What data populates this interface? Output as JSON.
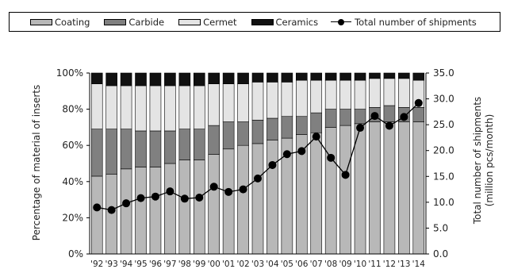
{
  "chart_data": {
    "type": "bar",
    "stacked": true,
    "percent_stacked": true,
    "categories": [
      "'92",
      "'93",
      "'94",
      "'95",
      "'96",
      "'97",
      "'98",
      "'99",
      "'00",
      "'01",
      "'02",
      "'03",
      "'04",
      "'05",
      "'06",
      "'07",
      "'08",
      "'09",
      "'10",
      "'11",
      "'12",
      "'13",
      "'14"
    ],
    "series": [
      {
        "name": "Coating",
        "color": "#b8b8b8",
        "values": [
          43,
          44,
          47,
          48,
          48,
          50,
          52,
          52,
          55,
          58,
          60,
          61,
          63,
          64,
          66,
          67,
          70,
          71,
          72,
          73,
          73,
          73,
          73
        ]
      },
      {
        "name": "Carbide",
        "color": "#808080",
        "values": [
          26,
          25,
          22,
          20,
          20,
          18,
          17,
          17,
          16,
          15,
          13,
          13,
          12,
          12,
          10,
          11,
          10,
          9,
          8,
          8,
          9,
          8,
          8
        ]
      },
      {
        "name": "Cermet",
        "color": "#e4e4e4",
        "values": [
          25,
          24,
          24,
          25,
          25,
          25,
          24,
          24,
          23,
          21,
          21,
          21,
          20,
          19,
          20,
          18,
          16,
          16,
          16,
          16,
          15,
          16,
          15
        ]
      },
      {
        "name": "Ceramics",
        "color": "#111111",
        "values": [
          6,
          7,
          7,
          7,
          7,
          7,
          7,
          7,
          6,
          6,
          6,
          5,
          5,
          5,
          4,
          4,
          4,
          4,
          4,
          3,
          3,
          3,
          4
        ]
      }
    ],
    "line_series": {
      "name": "Total number of shipments",
      "color": "#000000",
      "values": [
        9.0,
        8.5,
        9.8,
        10.8,
        11.1,
        12.1,
        10.7,
        10.9,
        13.0,
        12.0,
        12.5,
        14.6,
        17.2,
        19.3,
        19.9,
        22.7,
        18.6,
        15.3,
        24.4,
        26.7,
        24.8,
        26.5,
        29.2
      ]
    },
    "xlabel": "",
    "ylabel": "Percentage of material of inserts",
    "y2label_line1": "Total number of shipments",
    "y2label_line2": "(million pcs/month)",
    "ylim": [
      0,
      100
    ],
    "y2lim": [
      0,
      35
    ],
    "yticks": [
      "0%",
      "20%",
      "40%",
      "60%",
      "80%",
      "100%"
    ],
    "y2ticks": [
      "0.0",
      "5.0",
      "10.0",
      "15.0",
      "20.0",
      "25.0",
      "30.0",
      "35.0"
    ],
    "legend_position": "top",
    "grid": false
  }
}
